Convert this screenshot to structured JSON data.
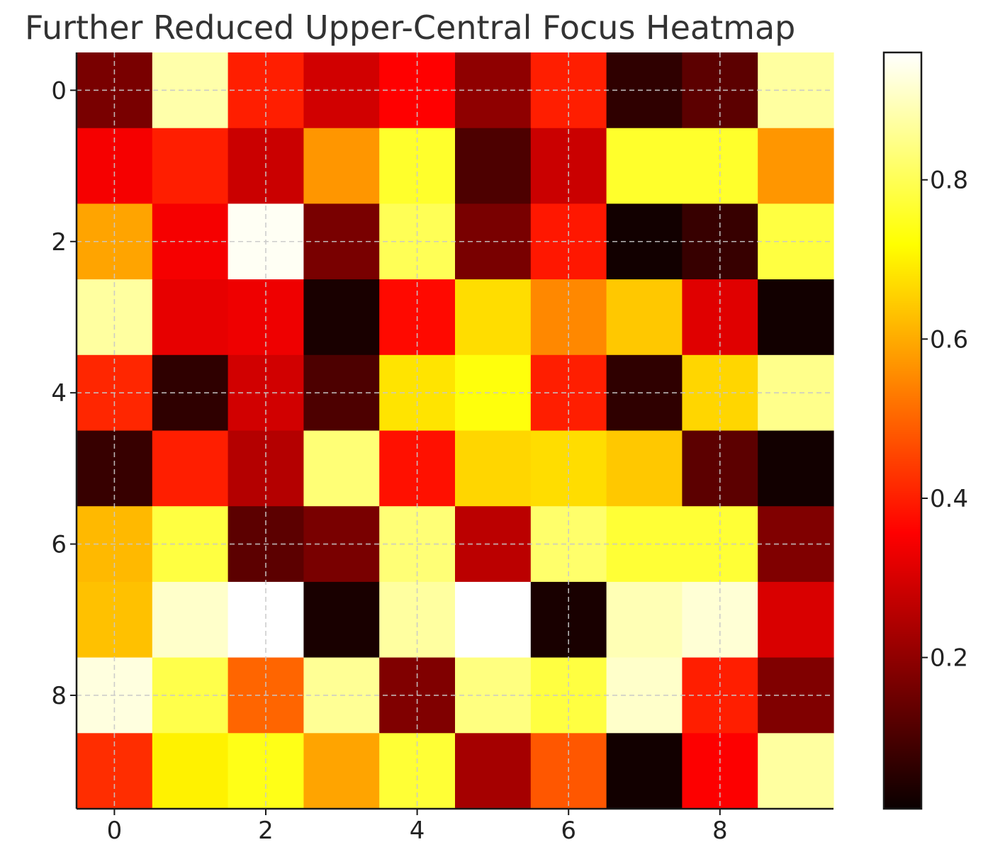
{
  "chart_data": {
    "type": "heatmap",
    "title": "Further Reduced Upper-Central Focus Heatmap",
    "colormap": "hot",
    "grid": true,
    "x_ticks": [
      0,
      2,
      4,
      6,
      8
    ],
    "y_ticks": [
      0,
      2,
      4,
      6,
      8
    ],
    "x_range": [
      -0.5,
      9.5
    ],
    "y_range": [
      -0.5,
      9.5
    ],
    "colorbar": {
      "range": [
        0.01,
        0.96
      ],
      "ticks": [
        0.2,
        0.4,
        0.6,
        0.8
      ],
      "tick_labels": [
        "0.2",
        "0.4",
        "0.6",
        "0.8"
      ],
      "placement": "right"
    },
    "values": [
      [
        0.16,
        0.88,
        0.4,
        0.28,
        0.35,
        0.19,
        0.4,
        0.06,
        0.12,
        0.87
      ],
      [
        0.33,
        0.4,
        0.27,
        0.57,
        0.76,
        0.1,
        0.27,
        0.76,
        0.76,
        0.57
      ],
      [
        0.59,
        0.33,
        0.95,
        0.16,
        0.8,
        0.16,
        0.39,
        0.02,
        0.07,
        0.78
      ],
      [
        0.87,
        0.31,
        0.32,
        0.03,
        0.37,
        0.67,
        0.55,
        0.64,
        0.3,
        0.02
      ],
      [
        0.41,
        0.06,
        0.28,
        0.1,
        0.68,
        0.73,
        0.4,
        0.06,
        0.66,
        0.85
      ],
      [
        0.07,
        0.4,
        0.24,
        0.83,
        0.38,
        0.66,
        0.67,
        0.64,
        0.12,
        0.02
      ],
      [
        0.62,
        0.78,
        0.12,
        0.16,
        0.83,
        0.25,
        0.82,
        0.77,
        0.77,
        0.17
      ],
      [
        0.63,
        0.91,
        0.96,
        0.03,
        0.87,
        0.96,
        0.03,
        0.89,
        0.92,
        0.29
      ],
      [
        0.93,
        0.79,
        0.5,
        0.86,
        0.17,
        0.84,
        0.78,
        0.91,
        0.4,
        0.17
      ],
      [
        0.42,
        0.7,
        0.74,
        0.59,
        0.77,
        0.22,
        0.48,
        0.02,
        0.34,
        0.87
      ]
    ]
  }
}
